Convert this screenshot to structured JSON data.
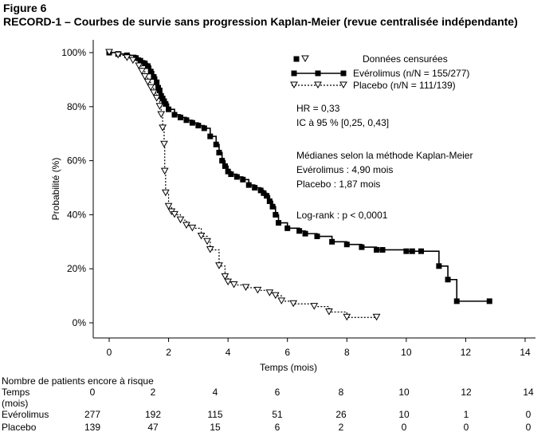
{
  "figure": {
    "label": "Figure 6",
    "heading": "RECORD-1 – Courbes de survie sans progression Kaplan-Meier (revue centralisée indépendante)"
  },
  "chart_data": {
    "type": "line",
    "subtype": "kaplan-meier step",
    "xlabel": "Temps (mois)",
    "ylabel": "Probabilité (%)",
    "xlim": [
      0,
      14
    ],
    "ylim": [
      0,
      100
    ],
    "xticks": [
      0,
      2,
      4,
      6,
      8,
      10,
      12,
      14
    ],
    "yticks": [
      0,
      20,
      40,
      60,
      80,
      100
    ],
    "ytick_labels": [
      "0%",
      "20%",
      "40%",
      "60%",
      "80%",
      "100%"
    ],
    "grid": false,
    "legend_position": "top-right",
    "legend": {
      "censored_label": "Données censurées",
      "entries": [
        "Evérolimus (n/N = 155/277)",
        "Placebo (n/N = 111/139)"
      ]
    },
    "annotations": [
      "HR = 0,33",
      "IC à 95 % [0,25, 0,43]",
      "Médianes selon la méthode Kaplan-Meier",
      "Evérolimus : 4,90 mois",
      "Placebo : 1,87 mois",
      "Log-rank : p < 0,0001"
    ],
    "series": [
      {
        "name": "Evérolimus",
        "style": "solid",
        "marker": "filled-square",
        "color": "#000000",
        "x": [
          0,
          0.3,
          0.6,
          0.9,
          1.05,
          1.2,
          1.3,
          1.4,
          1.5,
          1.6,
          1.65,
          1.7,
          1.75,
          1.8,
          1.85,
          1.9,
          2.0,
          2.2,
          2.4,
          2.6,
          2.8,
          3.0,
          3.2,
          3.4,
          3.6,
          3.7,
          3.8,
          3.9,
          4.0,
          4.1,
          4.3,
          4.5,
          4.7,
          4.9,
          5.1,
          5.2,
          5.3,
          5.4,
          5.5,
          5.6,
          5.7,
          6.0,
          6.4,
          6.6,
          7.0,
          7.5,
          8.0,
          8.5,
          9.0,
          9.2,
          10.0,
          10.2,
          10.5,
          11.1,
          11.4,
          11.7,
          12.8
        ],
        "y": [
          100,
          99.5,
          99,
          98,
          97,
          96,
          95,
          93,
          91,
          89,
          87,
          86,
          84,
          83,
          82,
          81,
          79,
          77,
          76,
          75,
          74,
          73,
          72,
          69,
          66,
          63,
          60,
          58,
          56,
          55,
          54,
          53,
          51,
          50,
          49,
          48,
          47,
          45,
          43,
          40,
          37,
          35,
          34,
          33,
          32,
          30,
          29,
          28,
          27,
          27,
          26.5,
          26.5,
          26.5,
          21,
          16,
          8,
          8
        ]
      },
      {
        "name": "Placebo",
        "style": "dotted",
        "marker": "open-triangle-down",
        "color": "#000000",
        "x": [
          0,
          0.3,
          0.6,
          0.8,
          1.0,
          1.1,
          1.2,
          1.3,
          1.4,
          1.5,
          1.6,
          1.7,
          1.75,
          1.8,
          1.85,
          1.87,
          1.9,
          2.0,
          2.1,
          2.2,
          2.4,
          2.6,
          2.8,
          3.1,
          3.3,
          3.4,
          3.7,
          3.9,
          4.0,
          4.2,
          4.6,
          5.0,
          5.4,
          5.6,
          5.8,
          6.2,
          6.9,
          7.4,
          8.0,
          9.0
        ],
        "y": [
          100,
          99,
          98,
          97,
          95,
          93,
          91,
          89,
          87,
          85,
          83,
          80,
          77,
          72,
          66,
          56,
          48,
          43,
          41,
          40,
          38,
          36,
          35,
          32,
          30,
          27,
          21,
          17,
          15,
          14,
          13,
          12,
          11,
          10,
          8,
          7,
          6,
          4,
          2,
          2
        ]
      }
    ]
  },
  "risk_table": {
    "title": "Nombre de patients encore à risque",
    "time_header_line1": "Temps",
    "time_header_line2": "(mois)",
    "times": [
      "0",
      "2",
      "4",
      "6",
      "8",
      "10",
      "12",
      "14"
    ],
    "rows": [
      {
        "label": "Evérolimus",
        "values": [
          "277",
          "192",
          "115",
          "51",
          "26",
          "10",
          "1",
          "0"
        ]
      },
      {
        "label": "Placebo",
        "values": [
          "139",
          "47",
          "15",
          "6",
          "2",
          "0",
          "0",
          "0"
        ]
      }
    ]
  }
}
